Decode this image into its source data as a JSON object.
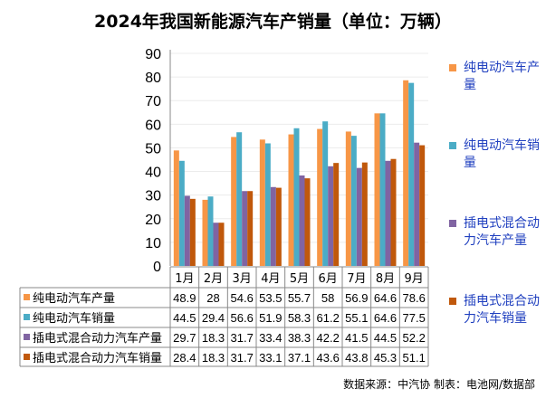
{
  "chart_data": {
    "type": "bar",
    "title": "2024年我国新能源汽车产销量（单位：万辆）",
    "categories": [
      "1月",
      "2月",
      "3月",
      "4月",
      "5月",
      "6月",
      "7月",
      "8月",
      "9月"
    ],
    "series": [
      {
        "name": "纯电动汽车产量",
        "color": "#F79646",
        "values": [
          48.9,
          28,
          54.6,
          53.5,
          55.7,
          58,
          56.9,
          64.6,
          78.6
        ]
      },
      {
        "name": "纯电动汽车销量",
        "color": "#4BACC6",
        "values": [
          44.5,
          29.4,
          56.6,
          51.9,
          58.3,
          61.2,
          55.1,
          64.6,
          77.5
        ]
      },
      {
        "name": "插电式混合动力汽车产量",
        "color": "#8064A2",
        "values": [
          29.7,
          18.3,
          31.7,
          33.4,
          38.3,
          42.2,
          41.5,
          44.5,
          52.2
        ]
      },
      {
        "name": "插电式混合动力汽车销量",
        "color": "#C0580B",
        "values": [
          28.4,
          18.3,
          31.7,
          33.1,
          37.1,
          43.6,
          43.8,
          45.3,
          51.1
        ]
      }
    ],
    "ylim": [
      0,
      90
    ],
    "yticks": [
      0,
      10,
      20,
      30,
      40,
      50,
      60,
      70,
      80,
      90
    ],
    "grid": true,
    "legend": "right",
    "data_table": true
  },
  "legend_labels": [
    "纯电动汽车产量",
    "纯电动汽车销量",
    "插电式混合动力汽车产量",
    "插电式混合动力汽车销量"
  ],
  "source": "数据来源：中汽协  制表：电池网/数据部"
}
